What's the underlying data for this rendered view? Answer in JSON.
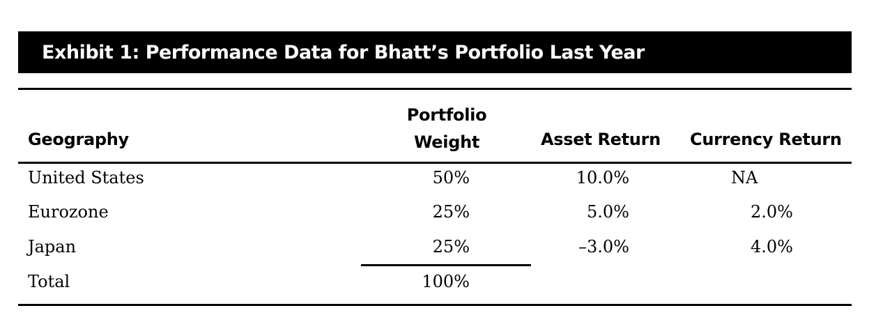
{
  "exhibit": {
    "title": "Exhibit 1: Performance Data for Bhatt’s Portfolio Last Year"
  },
  "table": {
    "headers": {
      "geography": "Geography",
      "weight_line1": "Portfolio",
      "weight_line2": "Weight",
      "asset_return": "Asset Return",
      "currency_return": "Currency Return"
    },
    "rows": [
      {
        "geography": "United States",
        "weight": "50%",
        "asset_return": "10.0%",
        "currency_return": "NA"
      },
      {
        "geography": "Eurozone",
        "weight": "25%",
        "asset_return": "5.0%",
        "currency_return": "2.0%"
      },
      {
        "geography": "Japan",
        "weight": "25%",
        "asset_return": "–3.0%",
        "currency_return": "4.0%"
      }
    ],
    "total": {
      "label": "Total",
      "weight": "100%"
    }
  }
}
